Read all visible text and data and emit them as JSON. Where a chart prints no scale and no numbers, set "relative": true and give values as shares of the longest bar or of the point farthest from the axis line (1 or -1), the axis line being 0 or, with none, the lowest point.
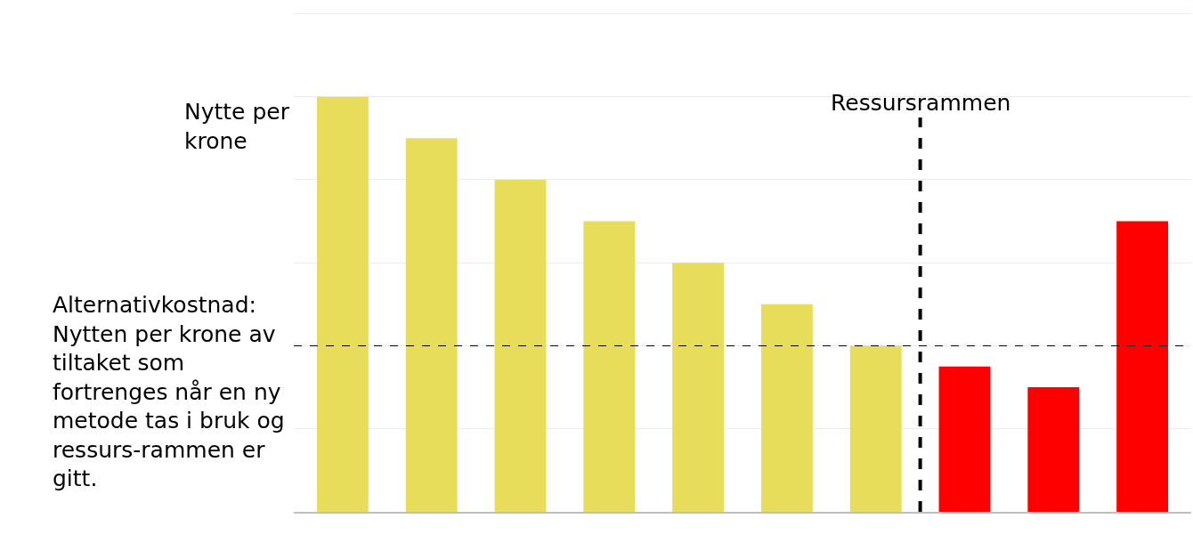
{
  "chart_data": {
    "type": "bar",
    "relative": true,
    "ylabel": "Nytte per krone",
    "categories": [
      null,
      null,
      null,
      null,
      null,
      null,
      null,
      null,
      null,
      null
    ],
    "values": [
      1,
      0.9,
      0.8,
      0.7,
      0.6,
      0.5,
      0.4,
      0.35,
      0.3,
      0.7
    ],
    "colors": [
      "#e8dd5b",
      "#e8dd5b",
      "#e8dd5b",
      "#e8dd5b",
      "#e8dd5b",
      "#e8dd5b",
      "#e8dd5b",
      "#ff0000",
      "#ff0000",
      "#ff0000"
    ],
    "grid": "y",
    "ref_lines": [
      {
        "axis": "y",
        "value": 0.4,
        "label": "Alternativkostnad: Nytten per krone av tiltaket som fortrenges når en ny metode tas i bruk og ressurs-rammen er gitt.",
        "color": "#000000",
        "line_style": "dashed"
      }
    ],
    "annotations": [
      "Ressursrammen"
    ]
  }
}
